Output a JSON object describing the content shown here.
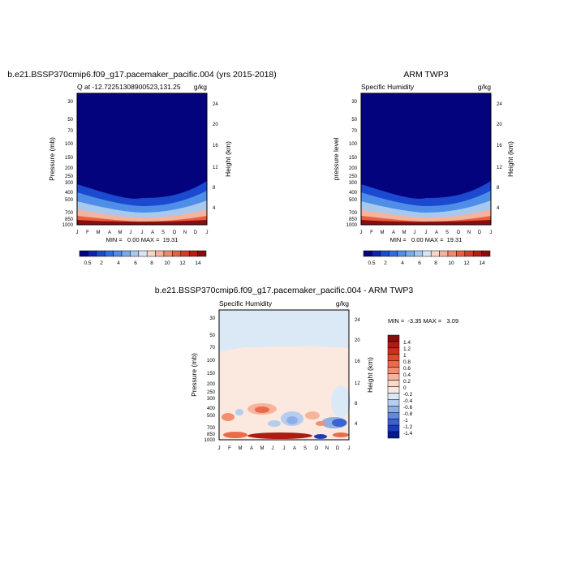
{
  "chart_data": [
    {
      "type": "heatmap",
      "title": "b.e21.BSSP370cmip6.f09_g17.pacemaker_pacific.004 (yrs 2015-2018)",
      "left_label": "Q at -12.72251308900523,131.25",
      "right_label": "g/kg",
      "ylabel": "Pressure (mb)",
      "ylabel_right": "Height (km)",
      "x_ticks": [
        "J",
        "F",
        "M",
        "A",
        "M",
        "J",
        "J",
        "A",
        "S",
        "O",
        "N",
        "D",
        "J"
      ],
      "y_ticks": [
        30,
        50,
        70,
        100,
        150,
        200,
        250,
        300,
        400,
        500,
        700,
        850,
        1000
      ],
      "height_ticks": [
        4,
        8,
        12,
        16,
        20,
        24
      ],
      "stats": "MIN =   0.00 MAX =  19.31",
      "colorbar_labels": [
        "0.5",
        "2",
        "4",
        "6",
        "8",
        "10",
        "12",
        "14"
      ]
    },
    {
      "type": "heatmap",
      "title": "ARM TWP3",
      "left_label": "Specific Humidity",
      "right_label": "g/kg",
      "ylabel": "pressure level",
      "ylabel_right": "Height (km)",
      "x_ticks": [
        "J",
        "F",
        "M",
        "A",
        "M",
        "J",
        "J",
        "A",
        "S",
        "O",
        "N",
        "D",
        "J"
      ],
      "y_ticks": [
        30,
        50,
        70,
        100,
        150,
        200,
        250,
        300,
        400,
        500,
        700,
        850,
        1000
      ],
      "height_ticks": [
        4,
        8,
        12,
        16,
        20,
        24
      ],
      "stats": "MIN =   0.00 MAX =  19.31",
      "colorbar_labels": [
        "0.5",
        "2",
        "4",
        "6",
        "8",
        "10",
        "12",
        "14"
      ]
    },
    {
      "type": "heatmap",
      "title": "b.e21.BSSP370cmip6.f09_g17.pacemaker_pacific.004 - ARM TWP3",
      "left_label": "Specific Humidity",
      "right_label": "g/kg",
      "ylabel": "Pressure (mb)",
      "ylabel_right": "Height (km)",
      "x_ticks": [
        "J",
        "F",
        "M",
        "A",
        "M",
        "J",
        "J",
        "A",
        "S",
        "O",
        "N",
        "D",
        "J"
      ],
      "y_ticks": [
        30,
        50,
        70,
        100,
        150,
        200,
        250,
        300,
        400,
        500,
        700,
        850,
        1000
      ],
      "height_ticks": [
        4,
        8,
        12,
        16,
        20,
        24
      ],
      "stats": "MIN =  -3.35 MAX =   3.09",
      "colorbar_labels": [
        "1.4",
        "1.2",
        "1",
        "0.8",
        "0.6",
        "0.4",
        "0.2",
        "0",
        "-0.2",
        "-0.4",
        "-0.6",
        "-0.8",
        "-1",
        "-1.2",
        "-1.4"
      ]
    }
  ],
  "colors": {
    "abs_scale": [
      "#03037e",
      "#0e22b2",
      "#1b4ad0",
      "#2c6de0",
      "#4e8ee8",
      "#77ace9",
      "#a8c8ee",
      "#d8e6f4",
      "#f7d6c8",
      "#f5b39c",
      "#ef8a6c",
      "#e65f42",
      "#d63b24",
      "#b61d12",
      "#8a0d0b"
    ],
    "diff_scale": [
      "#8a0d0b",
      "#b01a10",
      "#cf2e18",
      "#e0482c",
      "#eb6a4a",
      "#f28f72",
      "#f6b49c",
      "#f9d9c8",
      "#f9e8df",
      "#dbe9f6",
      "#b7cdf0",
      "#8eaee6",
      "#6388dc",
      "#3a63cf",
      "#1d3cb6",
      "#05198a"
    ]
  }
}
